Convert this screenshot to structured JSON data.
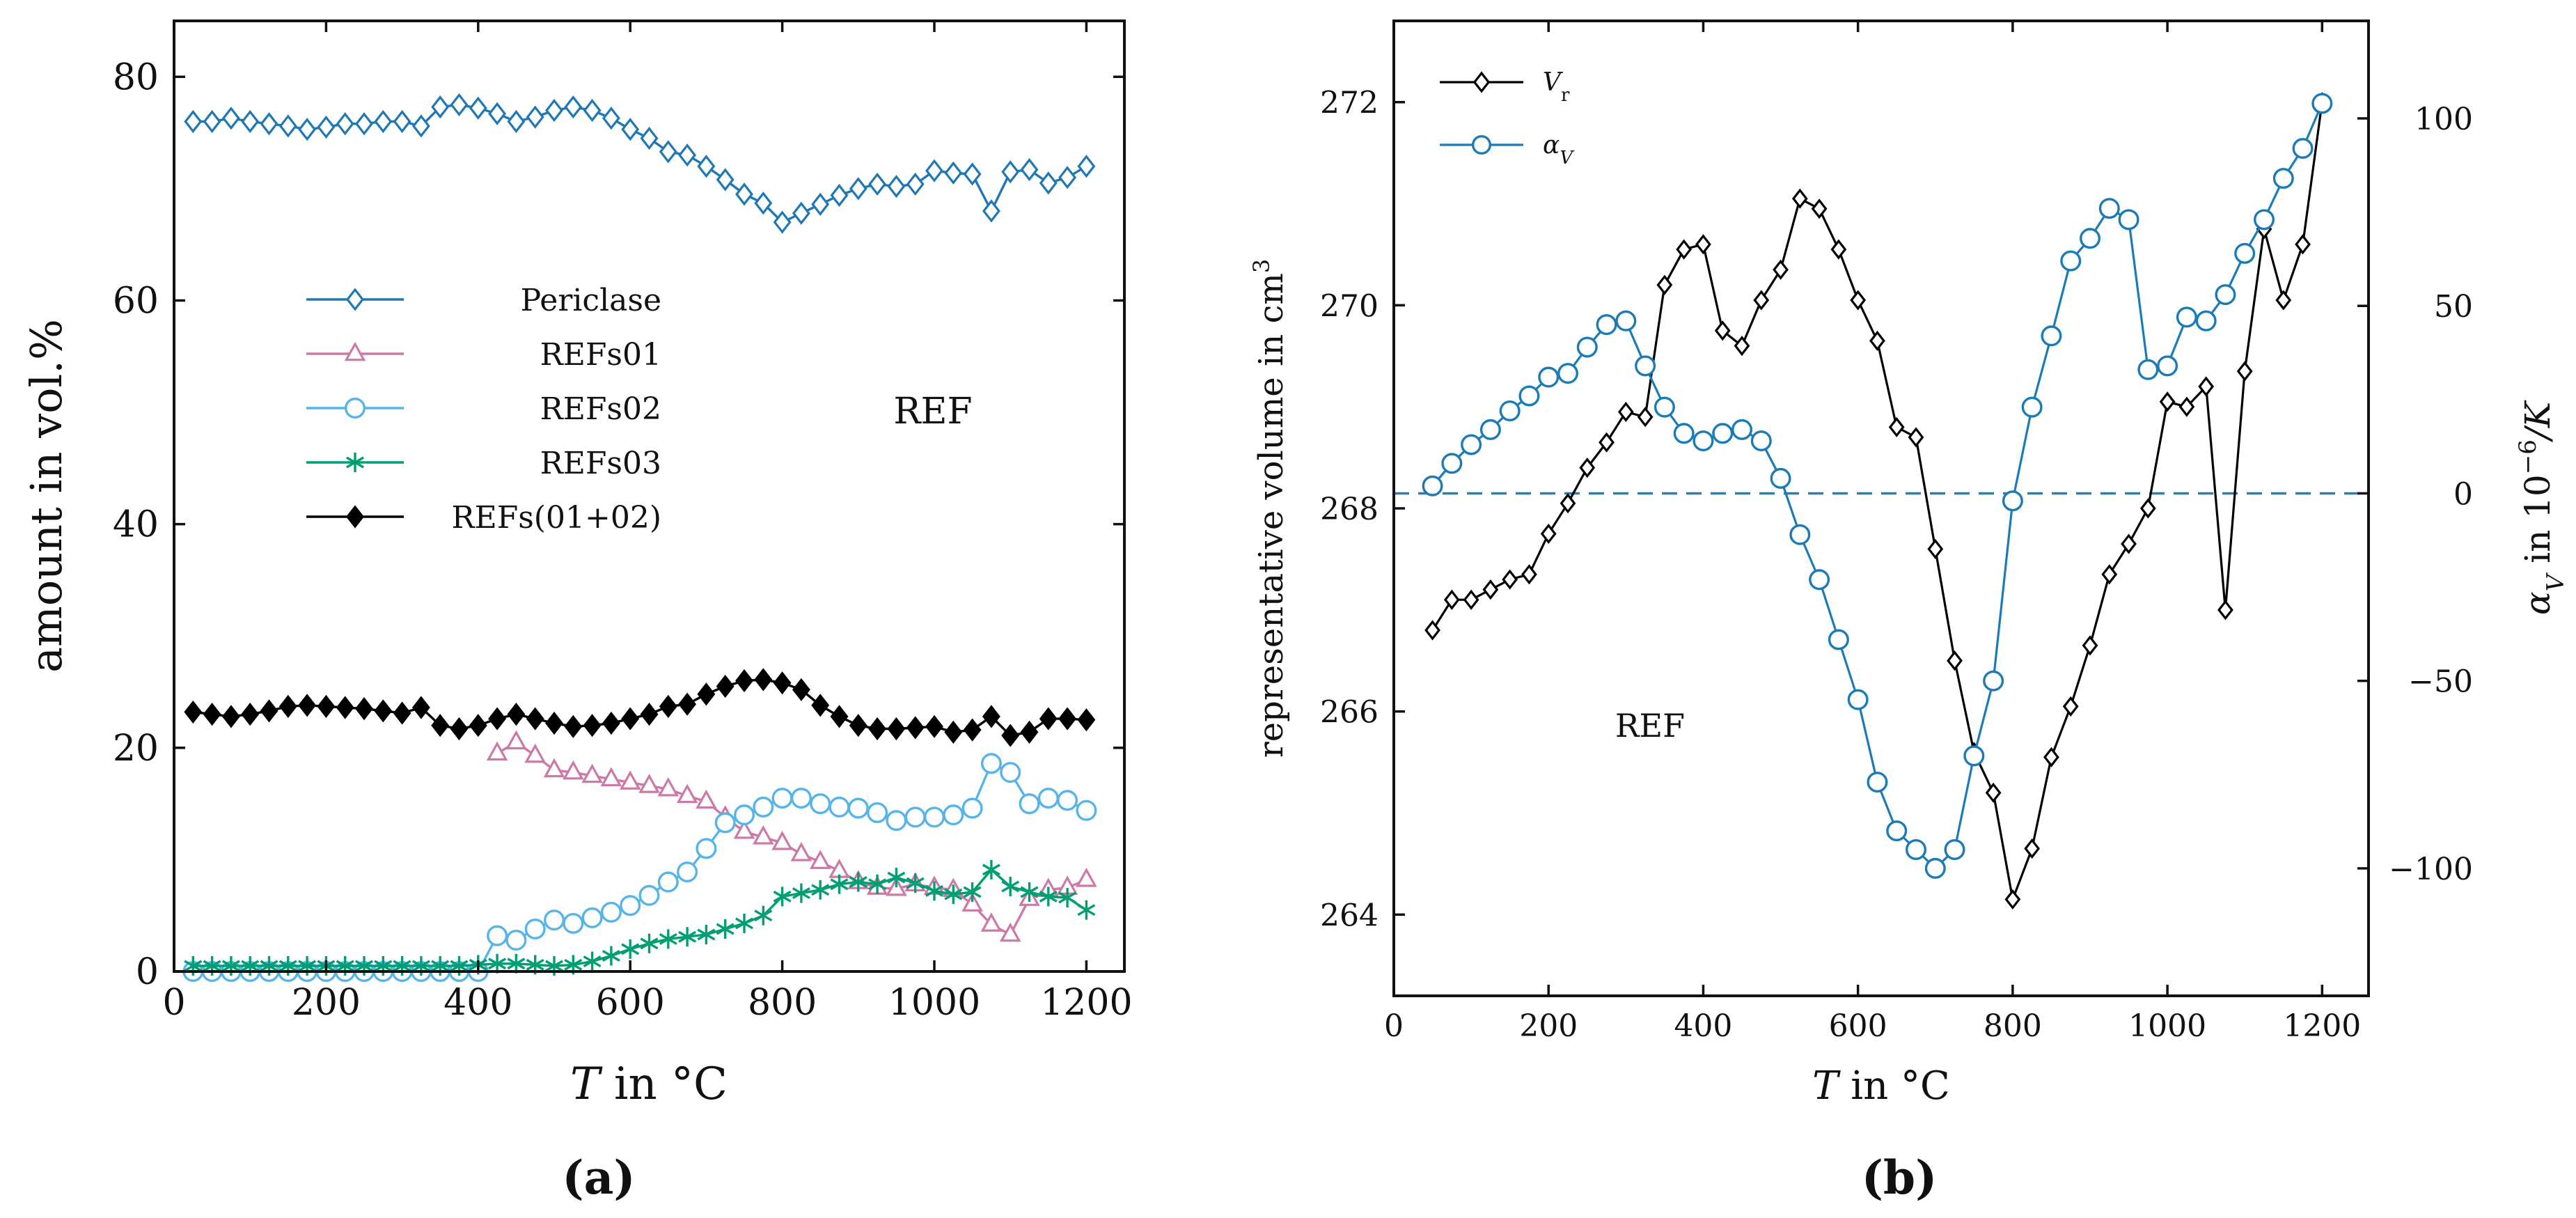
{
  "chart_data": [
    {
      "id": "a",
      "type": "line",
      "panel_label": "(a)",
      "annotation": "REF",
      "xlabel_var": "T",
      "xlabel_rest": " in °C",
      "ylabel": "amount in vol.%",
      "xlim": [
        0,
        1250
      ],
      "ylim": [
        0,
        85
      ],
      "xticks": [
        0,
        200,
        400,
        600,
        800,
        1000,
        1200
      ],
      "yticks": [
        0,
        20,
        40,
        60,
        80
      ],
      "legend_position": "center-left",
      "series": [
        {
          "name": "Periclase",
          "color": "#1f77b4",
          "marker": "diamond-open",
          "x": [
            25,
            50,
            75,
            100,
            125,
            150,
            175,
            200,
            225,
            250,
            275,
            300,
            325,
            350,
            375,
            400,
            425,
            450,
            475,
            500,
            525,
            550,
            575,
            600,
            625,
            650,
            675,
            700,
            725,
            750,
            775,
            800,
            825,
            850,
            875,
            900,
            925,
            950,
            975,
            1000,
            1025,
            1050,
            1075,
            1100,
            1125,
            1150,
            1175,
            1200
          ],
          "y": [
            76,
            76,
            76.3,
            76,
            75.8,
            75.6,
            75.3,
            75.5,
            75.8,
            75.8,
            76,
            76,
            75.6,
            77.3,
            77.5,
            77.2,
            76.7,
            76,
            76.4,
            77,
            77.3,
            77,
            76.3,
            75.3,
            74.5,
            73.3,
            73,
            72,
            70.8,
            69.5,
            68.7,
            67,
            67.8,
            68.6,
            69.4,
            70,
            70.4,
            70.2,
            70.4,
            71.6,
            71.4,
            71.3,
            68,
            71.5,
            71.7,
            70.5,
            71,
            72
          ]
        },
        {
          "name": "REFs01",
          "color": "#cc79a7",
          "marker": "triangle-open",
          "x": [
            425,
            450,
            475,
            500,
            525,
            550,
            575,
            600,
            625,
            650,
            675,
            700,
            725,
            750,
            775,
            800,
            825,
            850,
            875,
            900,
            925,
            950,
            975,
            1000,
            1025,
            1050,
            1075,
            1100,
            1125,
            1150,
            1175,
            1200
          ],
          "y": [
            19.5,
            20.5,
            19.3,
            18,
            17.8,
            17.5,
            17.2,
            16.9,
            16.6,
            16.3,
            15.7,
            15.2,
            13.8,
            12.5,
            12,
            11.5,
            10.5,
            9.8,
            9,
            8,
            7.5,
            7.4,
            7.8,
            7.5,
            7.3,
            6,
            4.2,
            3.3,
            6.5,
            7.3,
            7.5,
            8.2
          ]
        },
        {
          "name": "REFs02",
          "color": "#56b4e9",
          "marker": "circle-open",
          "x": [
            25,
            50,
            75,
            100,
            125,
            150,
            175,
            200,
            225,
            250,
            275,
            300,
            325,
            350,
            375,
            400,
            425,
            450,
            475,
            500,
            525,
            550,
            575,
            600,
            625,
            650,
            675,
            700,
            725,
            750,
            775,
            800,
            825,
            850,
            875,
            900,
            925,
            950,
            975,
            1000,
            1025,
            1050,
            1075,
            1100,
            1125,
            1150,
            1175,
            1200
          ],
          "y": [
            0,
            0,
            0,
            0,
            0,
            0,
            0,
            0,
            0,
            0,
            0,
            0,
            0,
            0,
            0,
            0,
            3.2,
            2.8,
            3.8,
            4.6,
            4.3,
            4.8,
            5.3,
            5.9,
            6.8,
            8,
            8.9,
            11,
            13.3,
            14,
            14.7,
            15.5,
            15.5,
            15,
            14.7,
            14.6,
            14.2,
            13.5,
            13.8,
            13.8,
            14,
            14.6,
            18.6,
            17.8,
            15,
            15.5,
            15.3,
            14.4
          ]
        },
        {
          "name": "REFs03",
          "color": "#009e73",
          "marker": "asterisk",
          "x": [
            25,
            50,
            75,
            100,
            125,
            150,
            175,
            200,
            225,
            250,
            275,
            300,
            325,
            350,
            375,
            400,
            425,
            450,
            475,
            500,
            525,
            550,
            575,
            600,
            625,
            650,
            675,
            700,
            725,
            750,
            775,
            800,
            825,
            850,
            875,
            900,
            925,
            950,
            975,
            1000,
            1025,
            1050,
            1075,
            1100,
            1125,
            1150,
            1175,
            1200
          ],
          "y": [
            0.5,
            0.5,
            0.5,
            0.5,
            0.5,
            0.5,
            0.5,
            0.5,
            0.5,
            0.5,
            0.5,
            0.5,
            0.5,
            0.5,
            0.5,
            0.6,
            0.7,
            0.7,
            0.6,
            0.5,
            0.6,
            0.9,
            1.4,
            2,
            2.5,
            2.9,
            3.1,
            3.3,
            3.8,
            4.3,
            5,
            6.7,
            7,
            7.3,
            7.8,
            8,
            7.8,
            8.4,
            7.9,
            7.2,
            6.9,
            7.1,
            9.1,
            7.6,
            7.1,
            6.7,
            6.6,
            5.5
          ]
        },
        {
          "name": "REFs(01+02)",
          "color": "#000000",
          "marker": "diamond-filled",
          "x": [
            25,
            50,
            75,
            100,
            125,
            150,
            175,
            200,
            225,
            250,
            275,
            300,
            325,
            350,
            375,
            400,
            425,
            450,
            475,
            500,
            525,
            550,
            575,
            600,
            625,
            650,
            675,
            700,
            725,
            750,
            775,
            800,
            825,
            850,
            875,
            900,
            925,
            950,
            975,
            1000,
            1025,
            1050,
            1075,
            1100,
            1125,
            1150,
            1175,
            1200
          ],
          "y": [
            23.2,
            23,
            22.8,
            23,
            23.3,
            23.7,
            23.8,
            23.7,
            23.6,
            23.5,
            23.3,
            23.1,
            23.6,
            22,
            21.7,
            22,
            22.6,
            23,
            22.6,
            22.2,
            21.9,
            22,
            22.2,
            22.6,
            23,
            23.7,
            23.9,
            24.8,
            25.5,
            26,
            26.1,
            25.8,
            25.2,
            23.8,
            22.8,
            22,
            21.7,
            21.7,
            21.8,
            21.9,
            21.4,
            21.6,
            22.8,
            21.1,
            21.4,
            22.6,
            22.6,
            22.5
          ]
        }
      ]
    },
    {
      "id": "b",
      "type": "line",
      "panel_label": "(b)",
      "annotation": "REF",
      "xlabel_var": "T",
      "xlabel_rest": " in °C",
      "ylabel_left": "representative volume in cm",
      "ylabel_left_sup": "3",
      "ylabel_right_var": "α",
      "ylabel_right_sub": "V",
      "ylabel_right_mid": " in 10",
      "ylabel_right_sup": "−6",
      "ylabel_right_end": "/K",
      "xlim": [
        0,
        1260
      ],
      "ylim_left": [
        263.2,
        272.8
      ],
      "ylim_right": [
        -134,
        126
      ],
      "xticks": [
        0,
        200,
        400,
        600,
        800,
        1000,
        1200
      ],
      "yticks_left": [
        264,
        266,
        268,
        270,
        272
      ],
      "yticks_right": [
        -100,
        -50,
        0,
        50,
        100
      ],
      "yticks_right_labels": [
        "−100",
        "−50",
        "0",
        "50",
        "100"
      ],
      "zero_line_right": 0,
      "legend_position": "top-left",
      "series": [
        {
          "name": "Vr",
          "name_main": "V",
          "name_sub": "r",
          "axis": "left",
          "color": "#000000",
          "marker": "diamond-open",
          "x": [
            50,
            75,
            100,
            125,
            150,
            175,
            200,
            225,
            250,
            275,
            300,
            325,
            350,
            375,
            400,
            425,
            450,
            475,
            500,
            525,
            550,
            575,
            600,
            625,
            650,
            675,
            700,
            725,
            750,
            775,
            800,
            825,
            850,
            875,
            900,
            925,
            950,
            975,
            1000,
            1025,
            1050,
            1075,
            1100,
            1125,
            1150,
            1175,
            1200
          ],
          "y": [
            266.8,
            267.1,
            267.1,
            267.2,
            267.3,
            267.35,
            267.75,
            268.05,
            268.4,
            268.65,
            268.95,
            268.9,
            270.2,
            270.55,
            270.6,
            269.75,
            269.6,
            270.05,
            270.35,
            271.05,
            270.95,
            270.55,
            270.05,
            269.65,
            268.8,
            268.7,
            267.6,
            266.5,
            265.6,
            265.2,
            264.15,
            264.65,
            265.55,
            266.05,
            266.65,
            267.35,
            267.65,
            268,
            269.05,
            269,
            269.2,
            267,
            269.35,
            270.75,
            270.05,
            270.6,
            272
          ]
        },
        {
          "name": "αV",
          "name_main": "α",
          "name_sub": "V",
          "axis": "right",
          "color": "#1b7bb6",
          "marker": "circle-open",
          "x": [
            50,
            75,
            100,
            125,
            150,
            175,
            200,
            225,
            250,
            275,
            300,
            325,
            350,
            375,
            400,
            425,
            450,
            475,
            500,
            525,
            550,
            575,
            600,
            625,
            650,
            675,
            700,
            725,
            750,
            775,
            800,
            825,
            850,
            875,
            900,
            925,
            950,
            975,
            1000,
            1025,
            1050,
            1075,
            1100,
            1125,
            1150,
            1175,
            1200
          ],
          "y": [
            2,
            8,
            13,
            17,
            22,
            26,
            31,
            32,
            39,
            45,
            46,
            34,
            23,
            16,
            14,
            16,
            17,
            14,
            4,
            -11,
            -23,
            -39,
            -55,
            -77,
            -90,
            -95,
            -100,
            -95,
            -70,
            -50,
            -2,
            23,
            42,
            62,
            68,
            76,
            73,
            33,
            34,
            47,
            46,
            53,
            64,
            73,
            84,
            92,
            104
          ]
        }
      ]
    }
  ]
}
